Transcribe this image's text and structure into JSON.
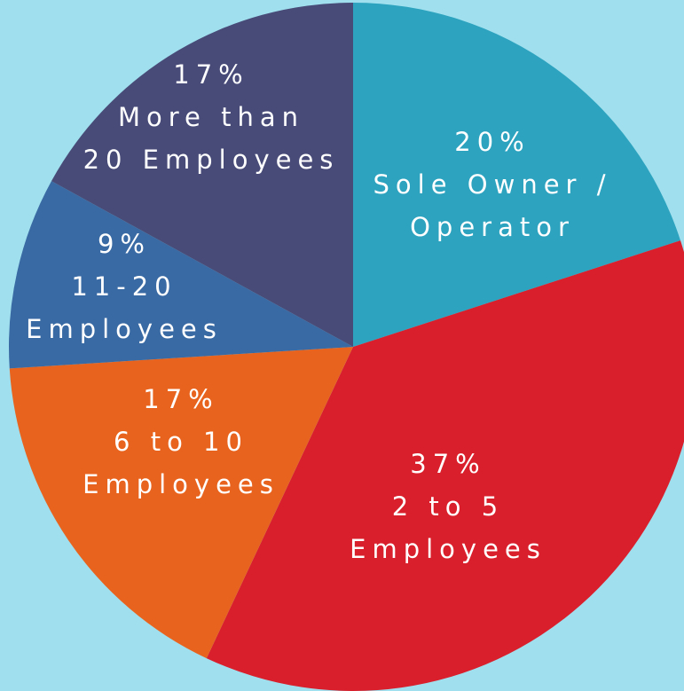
{
  "chart_data": {
    "type": "pie",
    "background_color": "#a0e0ee",
    "start_angle_deg": 0,
    "direction": "clockwise",
    "slices": [
      {
        "value": 20,
        "label": [
          "20%",
          "Sole Owner /",
          "Operator"
        ],
        "color": "#2da3bf"
      },
      {
        "value": 37,
        "label": [
          "37%",
          "2 to 5",
          "Employees"
        ],
        "color": "#d91f2b"
      },
      {
        "value": 17,
        "label": [
          "17%",
          "6 to 10",
          "Employees"
        ],
        "color": "#e8641e"
      },
      {
        "value": 9,
        "label": [
          "9%",
          "11-20",
          "Employees"
        ],
        "color": "#3a6aa3"
      },
      {
        "value": 17,
        "label": [
          "17%",
          "More than",
          "20 Employees"
        ],
        "color": "#484b78"
      }
    ]
  }
}
